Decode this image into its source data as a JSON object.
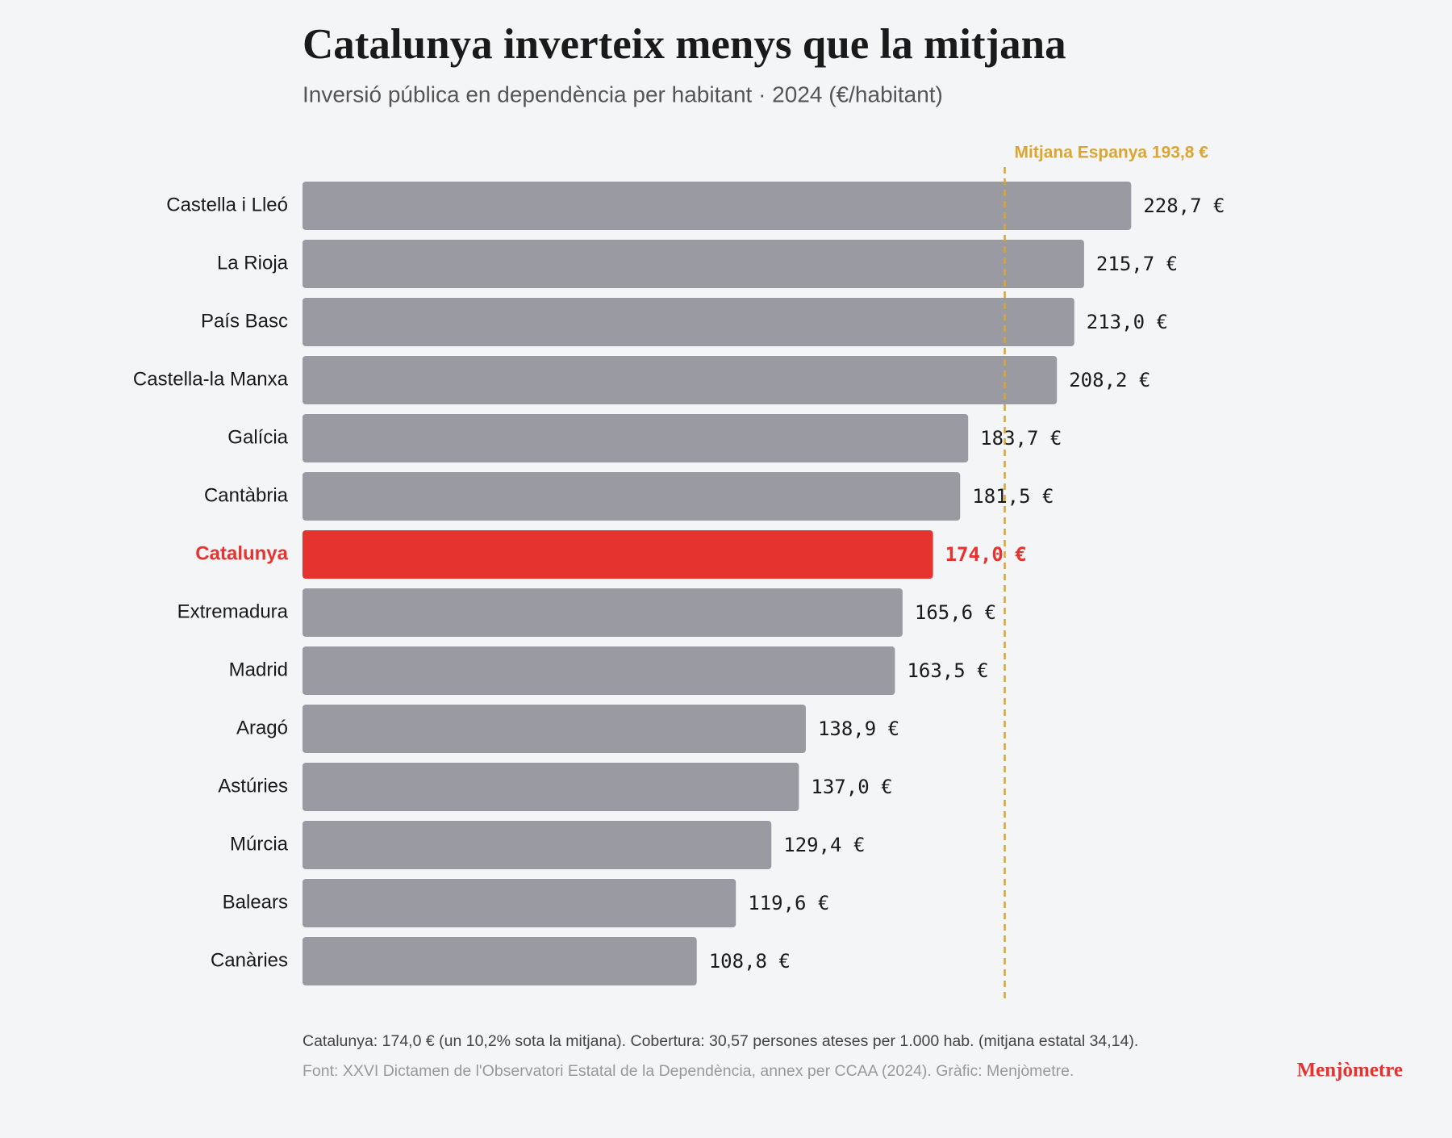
{
  "chart_data": {
    "type": "bar",
    "orientation": "horizontal",
    "title": "Catalunya inverteix menys que la mitjana",
    "subtitle": "Inversió pública en dependència per habitant · 2024 (€/habitant)",
    "categories": [
      "Castella i Lleó",
      "La Rioja",
      "País Basc",
      "Castella-la Manxa",
      "Galícia",
      "Cantàbria",
      "Catalunya",
      "Extremadura",
      "Madrid",
      "Aragó",
      "Astúries",
      "Múrcia",
      "Balears",
      "Canàries"
    ],
    "values": [
      228.7,
      215.7,
      213.0,
      208.2,
      183.7,
      181.5,
      174.0,
      165.6,
      163.5,
      138.9,
      137.0,
      129.4,
      119.6,
      108.8
    ],
    "value_labels": [
      "228,7 €",
      "215,7 €",
      "213,0 €",
      "208,2 €",
      "183,7 €",
      "181,5 €",
      "174,0 €",
      "165,6 €",
      "163,5 €",
      "138,9 €",
      "137,0 €",
      "129,4 €",
      "119,6 €",
      "108,8 €"
    ],
    "color": "#9a9aa2",
    "highlight": "Catalunya",
    "highlight_color": "#e53430",
    "reference_line": {
      "value": 193.8,
      "label": "Mitjana Espanya 193,8 €",
      "color": "#dba530"
    },
    "note": "Catalunya: 174,0 € (un 10,2% sota la mitjana). Cobertura: 30,57 persones ateses per 1.000 hab. (mitjana estatal 34,14).",
    "source": "Font: XXVI Dictamen de l'Observatori Estatal de la Dependència, annex per CCAA (2024). Gràfic: Menjòmetre.",
    "brand": "Menjòmetre"
  }
}
